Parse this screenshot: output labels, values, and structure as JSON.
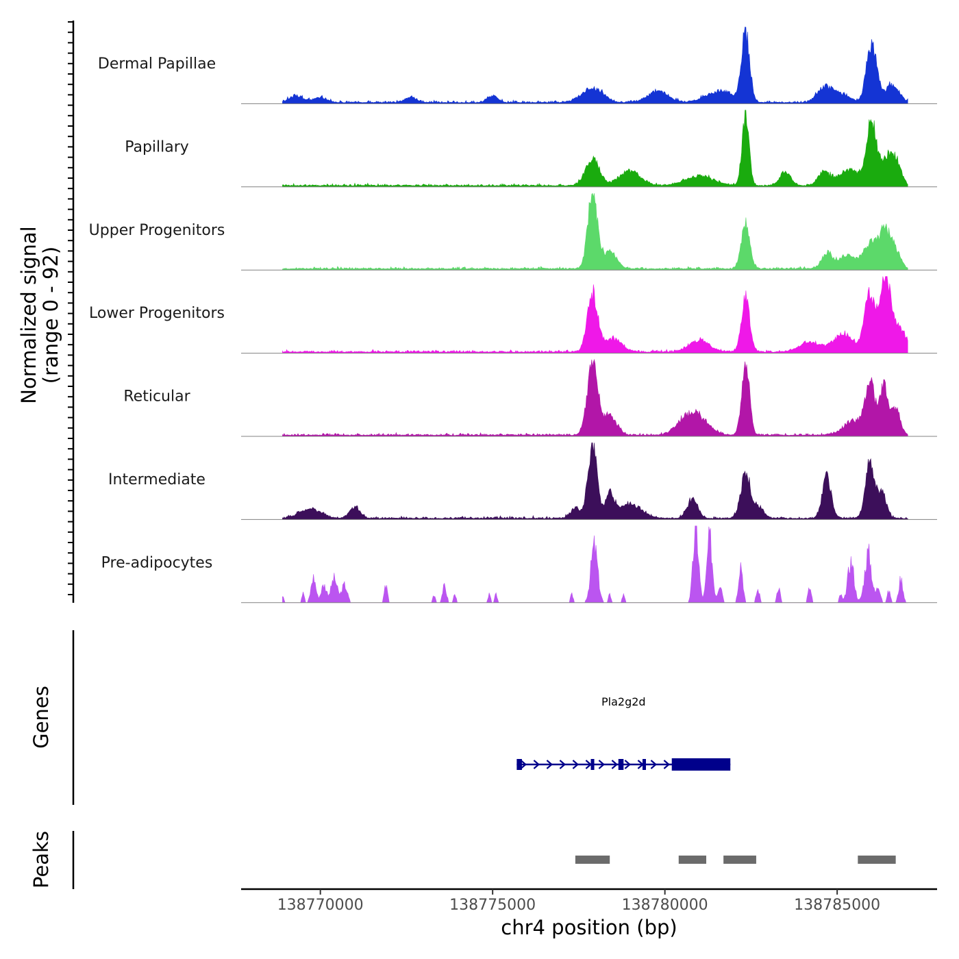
{
  "chart_data": {
    "type": "area",
    "title": "",
    "chromosome": "chr4",
    "xlabel": "chr4 position (bp)",
    "ylabel_line1": "Normalized signal",
    "ylabel_line2": "(range 0 - 92)",
    "xlim": [
      138767700,
      138787900
    ],
    "ylim": [
      0,
      92
    ],
    "x_ticks": [
      138770000,
      138775000,
      138780000,
      138785000
    ],
    "x_tick_labels": [
      "138770000",
      "138775000",
      "138780000",
      "138785000"
    ],
    "signal_range": [
      138768900,
      138787050
    ],
    "tracks": [
      {
        "name": "Dermal Papillae",
        "color": "#1434d4",
        "peaks": [
          [
            138769300,
            8,
            200
          ],
          [
            138770000,
            6,
            200
          ],
          [
            138772600,
            7,
            150
          ],
          [
            138775000,
            8,
            150
          ],
          [
            138777900,
            18,
            300
          ],
          [
            138779800,
            14,
            300
          ],
          [
            138781600,
            14,
            400
          ],
          [
            138782340,
            84,
            120
          ],
          [
            138784600,
            14,
            200
          ],
          [
            138785000,
            12,
            300
          ],
          [
            138786000,
            72,
            150
          ],
          [
            138786600,
            22,
            200
          ]
        ]
      },
      {
        "name": "Papillary",
        "color": "#1aab0e",
        "peaks": [
          [
            138777900,
            32,
            200
          ],
          [
            138779000,
            18,
            300
          ],
          [
            138781000,
            12,
            400
          ],
          [
            138782340,
            90,
            100
          ],
          [
            138783500,
            18,
            150
          ],
          [
            138784600,
            16,
            150
          ],
          [
            138785400,
            18,
            400
          ],
          [
            138786000,
            76,
            130
          ],
          [
            138786400,
            32,
            150
          ],
          [
            138786700,
            32,
            150
          ]
        ]
      },
      {
        "name": "Upper Progenitors",
        "color": "#5cd96a",
        "peaks": [
          [
            138777900,
            92,
            140
          ],
          [
            138778400,
            20,
            200
          ],
          [
            138782340,
            56,
            120
          ],
          [
            138784700,
            18,
            150
          ],
          [
            138785300,
            16,
            300
          ],
          [
            138786000,
            32,
            200
          ],
          [
            138786400,
            44,
            150
          ],
          [
            138786700,
            20,
            150
          ]
        ]
      },
      {
        "name": "Lower Progenitors",
        "color": "#ef18e8",
        "peaks": [
          [
            138777900,
            70,
            150
          ],
          [
            138778500,
            16,
            250
          ],
          [
            138781000,
            14,
            300
          ],
          [
            138782340,
            66,
            120
          ],
          [
            138784200,
            12,
            300
          ],
          [
            138785200,
            22,
            300
          ],
          [
            138785950,
            72,
            150
          ],
          [
            138786400,
            92,
            150
          ],
          [
            138786800,
            28,
            200
          ]
        ]
      },
      {
        "name": "Reticular",
        "color": "#b216a8",
        "peaks": [
          [
            138777900,
            88,
            150
          ],
          [
            138778400,
            24,
            200
          ],
          [
            138780600,
            16,
            300
          ],
          [
            138781000,
            18,
            300
          ],
          [
            138782340,
            92,
            110
          ],
          [
            138785500,
            18,
            300
          ],
          [
            138785950,
            62,
            130
          ],
          [
            138786350,
            58,
            130
          ],
          [
            138786700,
            32,
            130
          ]
        ]
      },
      {
        "name": "Intermediate",
        "color": "#3c0f5a",
        "peaks": [
          [
            138769700,
            12,
            300
          ],
          [
            138771000,
            14,
            150
          ],
          [
            138777400,
            12,
            150
          ],
          [
            138777900,
            92,
            130
          ],
          [
            138778400,
            30,
            130
          ],
          [
            138779000,
            18,
            300
          ],
          [
            138780800,
            24,
            150
          ],
          [
            138782340,
            54,
            140
          ],
          [
            138782700,
            14,
            150
          ],
          [
            138784700,
            50,
            130
          ],
          [
            138785950,
            66,
            130
          ],
          [
            138786300,
            32,
            130
          ]
        ]
      },
      {
        "name": "Pre-adipocytes",
        "color": "#bb55f0",
        "peaks": [
          [
            138768900,
            10,
            40
          ],
          [
            138769500,
            12,
            40
          ],
          [
            138769800,
            32,
            70
          ],
          [
            138770100,
            22,
            80
          ],
          [
            138770400,
            30,
            90
          ],
          [
            138770700,
            22,
            80
          ],
          [
            138771900,
            22,
            50
          ],
          [
            138773300,
            10,
            40
          ],
          [
            138773600,
            20,
            60
          ],
          [
            138773900,
            10,
            40
          ],
          [
            138774900,
            10,
            40
          ],
          [
            138775100,
            10,
            40
          ],
          [
            138777300,
            10,
            40
          ],
          [
            138777950,
            70,
            100
          ],
          [
            138778400,
            10,
            40
          ],
          [
            138778800,
            10,
            40
          ],
          [
            138780900,
            92,
            80
          ],
          [
            138781300,
            80,
            80
          ],
          [
            138781600,
            24,
            60
          ],
          [
            138782200,
            50,
            60
          ],
          [
            138782700,
            16,
            50
          ],
          [
            138783300,
            20,
            50
          ],
          [
            138784200,
            18,
            50
          ],
          [
            138785100,
            10,
            40
          ],
          [
            138785400,
            52,
            90
          ],
          [
            138785900,
            62,
            100
          ],
          [
            138786200,
            20,
            60
          ],
          [
            138786500,
            14,
            50
          ],
          [
            138786850,
            30,
            60
          ]
        ]
      }
    ],
    "gene": {
      "name": "Pla2g2d",
      "start": 138775700,
      "end": 138781900,
      "strand": "+",
      "thick_start": 138780200,
      "exons": [
        [
          138775700,
          138775850
        ],
        [
          138777850,
          138777950
        ],
        [
          138778650,
          138778800
        ],
        [
          138779350,
          138779450
        ],
        [
          138780200,
          138781900
        ]
      ]
    },
    "peaks_track": [
      [
        138777400,
        138778400
      ],
      [
        138780400,
        138781200
      ],
      [
        138781700,
        138782650
      ],
      [
        138785600,
        138786700
      ]
    ],
    "panel_labels": {
      "genes": "Genes",
      "peaks": "Peaks"
    }
  },
  "colors": {
    "gene": "#00008b",
    "peak": "#6b6b6b",
    "baseline": "#808080"
  }
}
